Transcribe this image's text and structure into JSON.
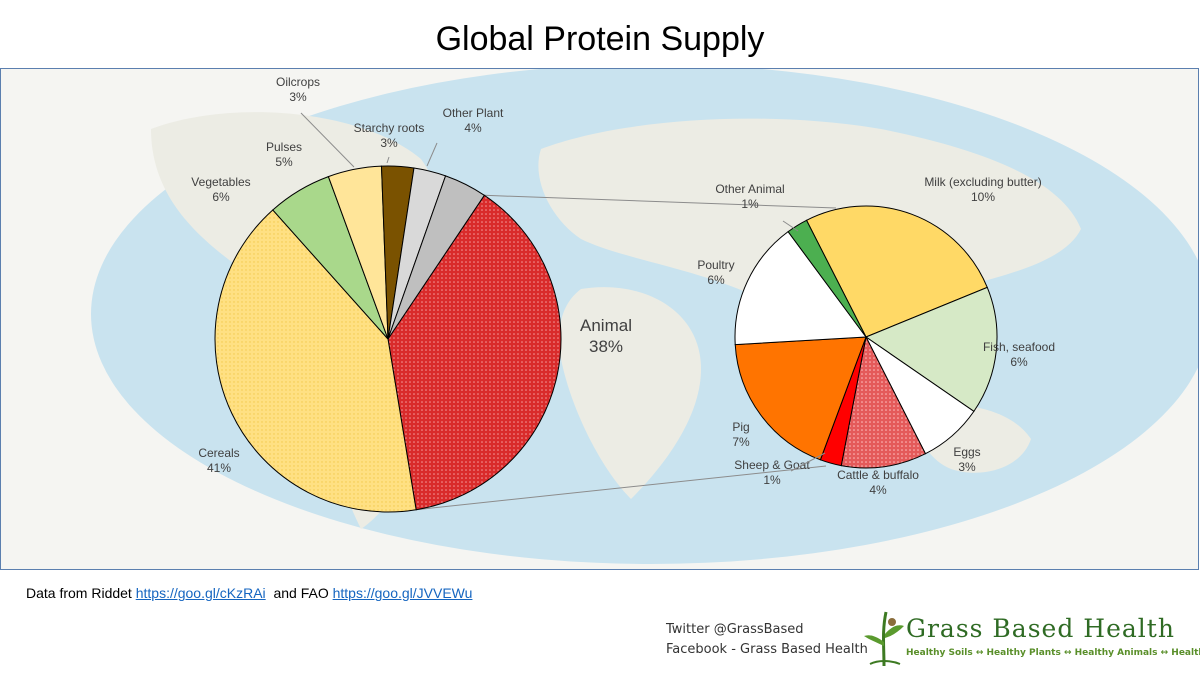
{
  "title": "Global Protein Supply",
  "source": {
    "prefix": "Data from Riddet",
    "riddet_link": "https://goo.gl/cKzRAi",
    "middle": "and FAO",
    "fao_link": "https://goo.gl/JVVEWu"
  },
  "social": {
    "twitter": "Twitter @GrassBased",
    "facebook": "Facebook - Grass Based Health"
  },
  "logo": {
    "name": "Grass Based Health",
    "tagline": "Healthy Soils ↔ Healthy Plants ↔ Healthy Animals ↔ Healthy People"
  },
  "chart_data": [
    {
      "type": "pie",
      "title": "Global Protein Supply",
      "slices": [
        {
          "label": "Animal",
          "display": "38%",
          "value": 38,
          "color": "#e23b3b"
        },
        {
          "label": "Cereals",
          "display": "41%",
          "value": 41,
          "color": "#ffe083"
        },
        {
          "label": "Vegetables",
          "display": "6%",
          "value": 6,
          "color": "#a9d88b"
        },
        {
          "label": "Pulses",
          "display": "5%",
          "value": 5,
          "color": "#ffe599"
        },
        {
          "label": "Oilcrops",
          "display": "3%",
          "value": 3,
          "color": "#7a5200"
        },
        {
          "label": "Starchy roots",
          "display": "3%",
          "value": 3,
          "color": "#d9d9d9"
        },
        {
          "label": "Other Plant",
          "display": "4%",
          "value": 4,
          "color": "#bfbfbf"
        }
      ]
    },
    {
      "type": "pie",
      "title": "Animal",
      "slices": [
        {
          "label": "Milk (excluding butter)",
          "display": "10%",
          "value": 10,
          "color": "#ffd966"
        },
        {
          "label": "Fish, seafood",
          "display": "6%",
          "value": 6,
          "color": "#d6e9c6"
        },
        {
          "label": "Eggs",
          "display": "3%",
          "value": 3,
          "color": "#ffffff"
        },
        {
          "label": "Cattle & buffalo",
          "display": "4%",
          "value": 4,
          "color": "#e86a6a"
        },
        {
          "label": "Sheep & Goat",
          "display": "1%",
          "value": 1,
          "color": "#ff0000"
        },
        {
          "label": "Pig",
          "display": "7%",
          "value": 7,
          "color": "#ff7400"
        },
        {
          "label": "Poultry",
          "display": "6%",
          "value": 6,
          "color": "#ffffff"
        },
        {
          "label": "Other Animal",
          "display": "1%",
          "value": 1,
          "color": "#4caf50"
        }
      ]
    }
  ]
}
